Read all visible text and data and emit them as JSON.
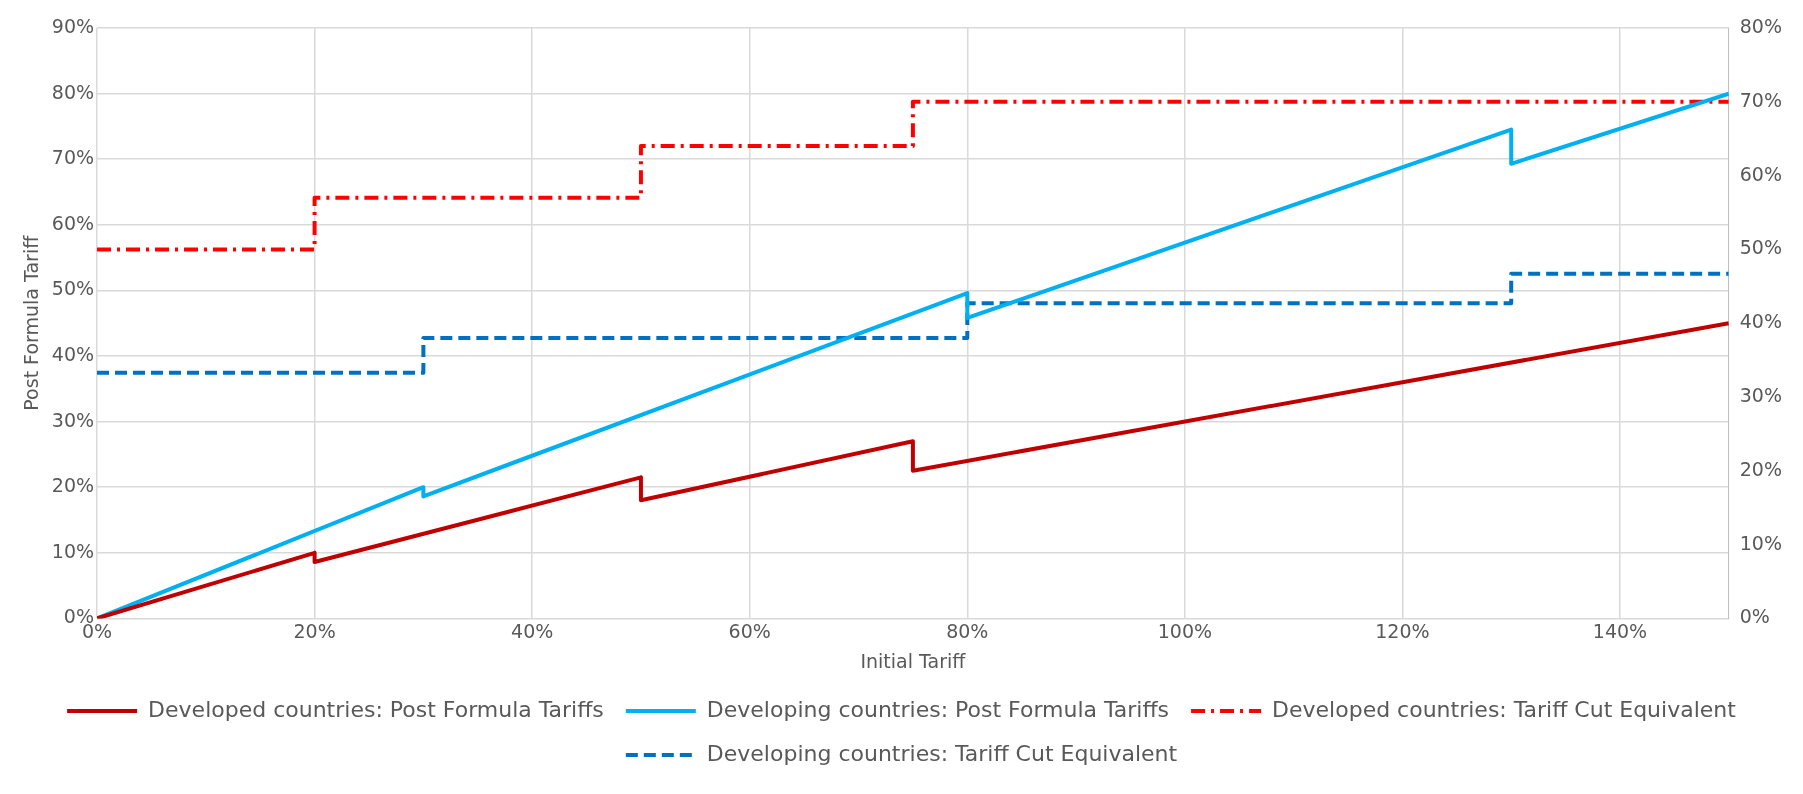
{
  "chart_data": {
    "type": "line",
    "xlabel": "Initial Tariff",
    "ylabel": "Post Formula Tariff",
    "xlim": [
      0,
      150
    ],
    "xticks": [
      {
        "value": 0,
        "label": "0%"
      },
      {
        "value": 20,
        "label": "20%"
      },
      {
        "value": 40,
        "label": "40%"
      },
      {
        "value": 60,
        "label": "60%"
      },
      {
        "value": 80,
        "label": "80%"
      },
      {
        "value": 100,
        "label": "100%"
      },
      {
        "value": 120,
        "label": "120%"
      },
      {
        "value": 140,
        "label": "140%"
      }
    ],
    "ylim": [
      0,
      90
    ],
    "yticks": [
      {
        "value": 0,
        "label": "0%"
      },
      {
        "value": 10,
        "label": "10%"
      },
      {
        "value": 20,
        "label": "20%"
      },
      {
        "value": 30,
        "label": "30%"
      },
      {
        "value": 40,
        "label": "40%"
      },
      {
        "value": 50,
        "label": "50%"
      },
      {
        "value": 60,
        "label": "60%"
      },
      {
        "value": 70,
        "label": "70%"
      },
      {
        "value": 80,
        "label": "80%"
      },
      {
        "value": 90,
        "label": "90%"
      }
    ],
    "y2lim": [
      0,
      80
    ],
    "y2ticks": [
      {
        "value": 0,
        "label": "0%"
      },
      {
        "value": 10,
        "label": "10%"
      },
      {
        "value": 20,
        "label": "20%"
      },
      {
        "value": 30,
        "label": "30%"
      },
      {
        "value": 40,
        "label": "40%"
      },
      {
        "value": 50,
        "label": "50%"
      },
      {
        "value": 60,
        "label": "60%"
      },
      {
        "value": 70,
        "label": "70%"
      },
      {
        "value": 80,
        "label": "80%"
      }
    ],
    "grid": true,
    "legend": "bottom",
    "marker": "none",
    "series": [
      {
        "name": "Developed countries: Post Formula Tariffs",
        "color": "#c00000",
        "line_style": "solid",
        "x": [
          0,
          20,
          20,
          50,
          50,
          75,
          75,
          150
        ],
        "values": [
          0,
          10,
          8.6,
          21.5,
          18,
          27,
          22.5,
          45
        ]
      },
      {
        "name": "Developing countries: Post Formula Tariffs",
        "color": "#00b0f0",
        "line_style": "solid",
        "x": [
          0,
          30,
          30,
          80,
          80,
          130,
          130,
          150
        ],
        "values": [
          0,
          20,
          18.6,
          49.6,
          45.8,
          74.5,
          69.3,
          80
        ]
      },
      {
        "name": "Developed countries: Tariff Cut Equivalent",
        "color": "#ff0000",
        "line_style": "dashdot",
        "axis": "y2",
        "x": [
          0,
          20,
          20,
          50,
          50,
          75,
          75,
          150
        ],
        "values": [
          50,
          50,
          57,
          57,
          64,
          64,
          70,
          70
        ]
      },
      {
        "name": "Developing countries: Tariff Cut Equivalent",
        "color": "#0070c0",
        "line_style": "dashed",
        "axis": "y2",
        "x": [
          0,
          30,
          30,
          80,
          80,
          130,
          130,
          150
        ],
        "values": [
          33.3,
          33.3,
          38,
          38,
          42.7,
          42.7,
          46.7,
          46.7
        ]
      }
    ]
  }
}
